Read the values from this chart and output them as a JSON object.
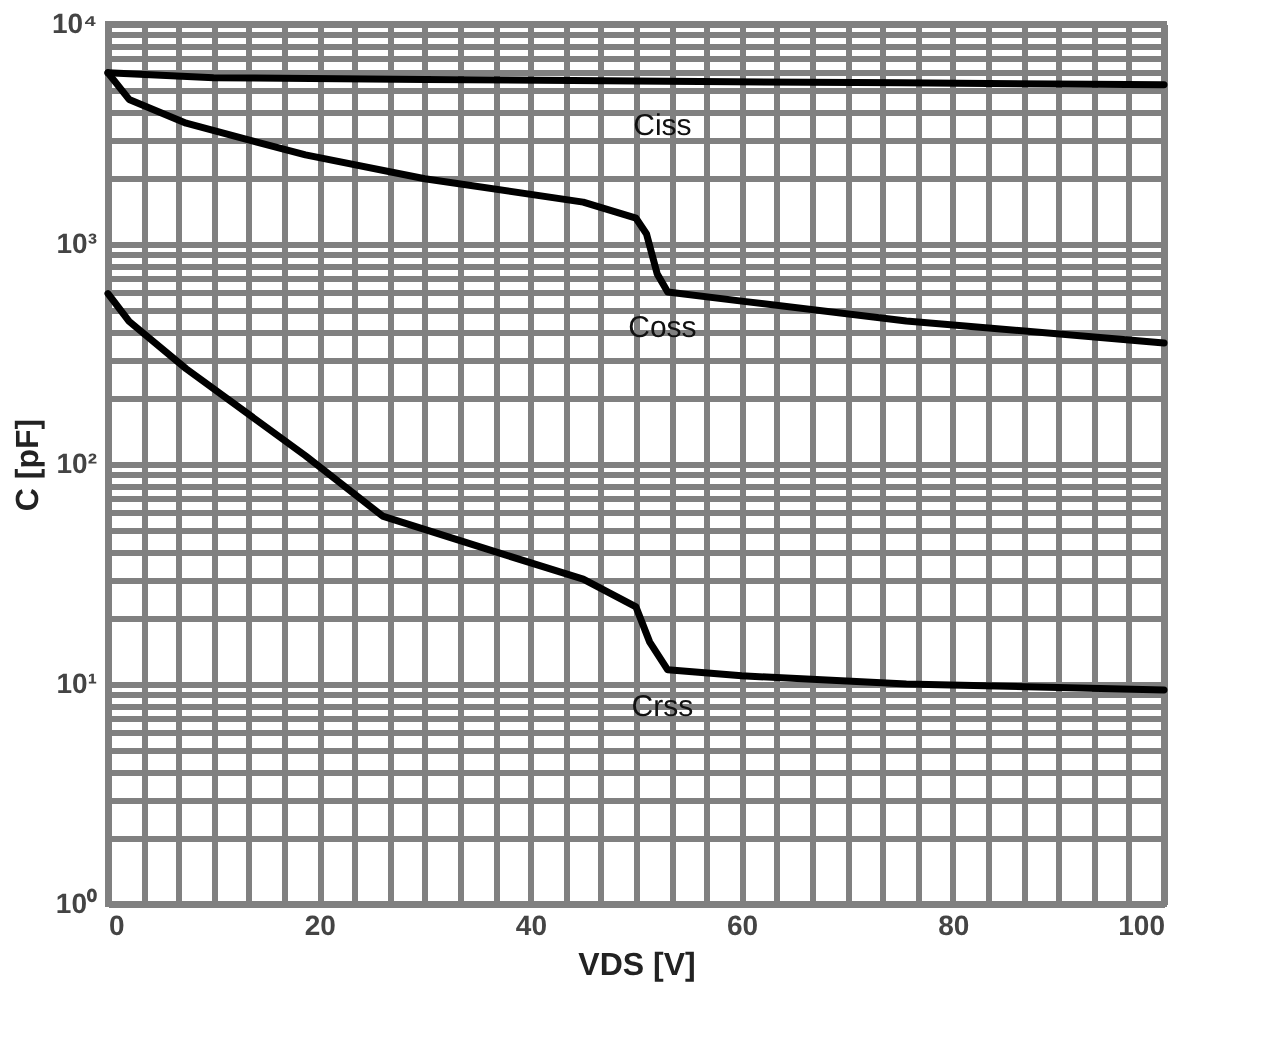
{
  "chart_data": {
    "type": "line",
    "xlabel": "VDS [V]",
    "ylabel": "C [pF]",
    "log": "y",
    "grid": true,
    "legend": false,
    "xlim": [
      0,
      100
    ],
    "ylim": [
      1,
      10000
    ],
    "xticks": [
      0,
      {
        "value": 3.33,
        "label": null
      },
      {
        "value": 6.67,
        "label": null
      },
      {
        "value": 10,
        "label": null
      },
      {
        "value": 13.33,
        "label": null
      },
      {
        "value": 16.67,
        "label": null
      },
      20,
      {
        "value": 23.33,
        "label": null
      },
      {
        "value": 26.67,
        "label": null
      },
      {
        "value": 30,
        "label": null
      },
      {
        "value": 33.33,
        "label": null
      },
      {
        "value": 36.67,
        "label": null
      },
      40,
      {
        "value": 43.33,
        "label": null
      },
      {
        "value": 46.67,
        "label": null
      },
      {
        "value": 50,
        "label": null
      },
      {
        "value": 53.33,
        "label": null
      },
      {
        "value": 56.67,
        "label": null
      },
      60,
      {
        "value": 63.33,
        "label": null
      },
      {
        "value": 66.67,
        "label": null
      },
      {
        "value": 70,
        "label": null
      },
      {
        "value": 73.33,
        "label": null
      },
      {
        "value": 76.67,
        "label": null
      },
      80,
      {
        "value": 83.33,
        "label": null
      },
      {
        "value": 86.67,
        "label": null
      },
      {
        "value": 90,
        "label": null
      },
      {
        "value": 93.33,
        "label": null
      },
      {
        "value": 96.67,
        "label": null
      },
      100
    ],
    "yticks": [
      {
        "value": 1,
        "label": "10⁰"
      },
      {
        "value": 2,
        "label": null
      },
      {
        "value": 3,
        "label": null
      },
      {
        "value": 4,
        "label": null
      },
      {
        "value": 5,
        "label": null
      },
      {
        "value": 6,
        "label": null
      },
      {
        "value": 7,
        "label": null
      },
      {
        "value": 8,
        "label": null
      },
      {
        "value": 9,
        "label": null
      },
      {
        "value": 10,
        "label": "10¹"
      },
      {
        "value": 20,
        "label": null
      },
      {
        "value": 30,
        "label": null
      },
      {
        "value": 40,
        "label": null
      },
      {
        "value": 50,
        "label": null
      },
      {
        "value": 60,
        "label": null
      },
      {
        "value": 70,
        "label": null
      },
      {
        "value": 80,
        "label": null
      },
      {
        "value": 90,
        "label": null
      },
      {
        "value": 100,
        "label": "10²"
      },
      {
        "value": 200,
        "label": null
      },
      {
        "value": 300,
        "label": null
      },
      {
        "value": 400,
        "label": null
      },
      {
        "value": 500,
        "label": null
      },
      {
        "value": 600,
        "label": null
      },
      {
        "value": 700,
        "label": null
      },
      {
        "value": 800,
        "label": null
      },
      {
        "value": 900,
        "label": null
      },
      {
        "value": 1000,
        "label": "10³"
      },
      {
        "value": 2000,
        "label": null
      },
      {
        "value": 3000,
        "label": null
      },
      {
        "value": 4000,
        "label": null
      },
      {
        "value": 5000,
        "label": null
      },
      {
        "value": 6000,
        "label": null
      },
      {
        "value": 7000,
        "label": null
      },
      {
        "value": 8000,
        "label": null
      },
      {
        "value": 9000,
        "label": null
      },
      {
        "value": 10000,
        "label": "10⁴"
      }
    ],
    "series": [
      {
        "name": "Ciss",
        "color": "#000000",
        "x": [
          0,
          10,
          30,
          50,
          75,
          100
        ],
        "values": [
          6000,
          5700,
          5600,
          5500,
          5400,
          5300
        ]
      },
      {
        "name": "Coss",
        "color": "#000000",
        "x": [
          0,
          2,
          7.4,
          18.7,
          30,
          45,
          50,
          51,
          52,
          53,
          60,
          75.6,
          100
        ],
        "values": [
          6000,
          4540,
          3540,
          2540,
          1980,
          1550,
          1310,
          1110,
          733,
          605,
          550,
          447,
          355
        ]
      },
      {
        "name": "Crss",
        "color": "#000000",
        "x": [
          0,
          2,
          7.4,
          18.7,
          26,
          37.7,
          45,
          50,
          51.3,
          53,
          60,
          75.6,
          100
        ],
        "values": [
          595,
          445,
          271,
          109,
          58,
          38.5,
          30,
          22.4,
          15.5,
          11.6,
          10.9,
          10,
          9.4
        ]
      }
    ]
  }
}
